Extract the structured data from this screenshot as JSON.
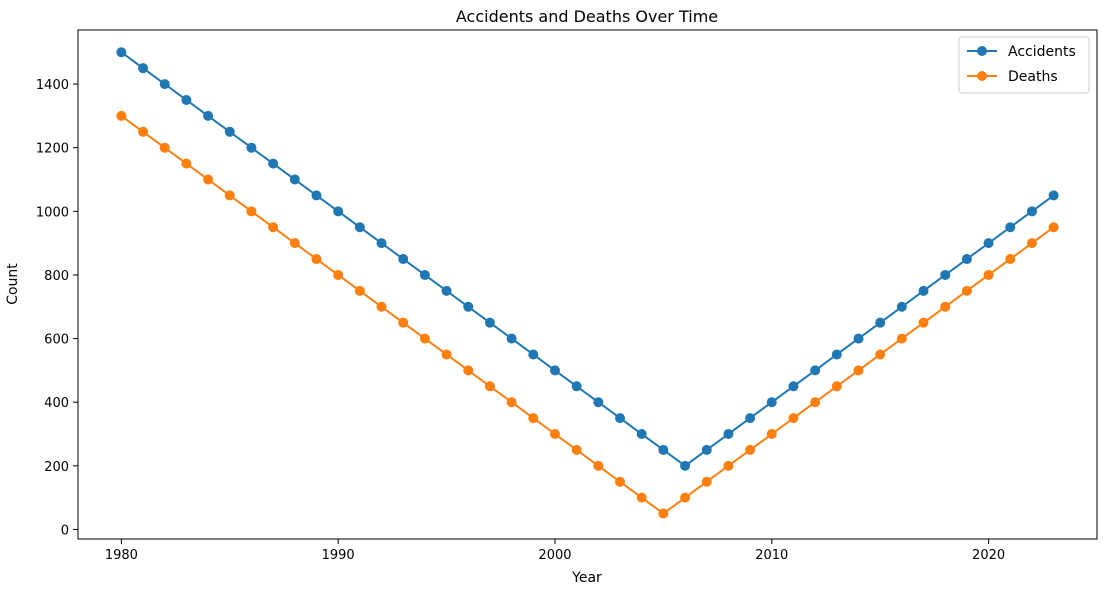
{
  "chart_data": {
    "type": "line",
    "title": "Accidents and Deaths Over Time",
    "xlabel": "Year",
    "ylabel": "Count",
    "xlim": [
      1978,
      2025
    ],
    "ylim": [
      -30,
      1570
    ],
    "xticks": [
      1980,
      1990,
      2000,
      2010,
      2020
    ],
    "yticks": [
      0,
      200,
      400,
      600,
      800,
      1000,
      1200,
      1400
    ],
    "grid": false,
    "legend_position": "top-right",
    "x": [
      1980,
      1981,
      1982,
      1983,
      1984,
      1985,
      1986,
      1987,
      1988,
      1989,
      1990,
      1991,
      1992,
      1993,
      1994,
      1995,
      1996,
      1997,
      1998,
      1999,
      2000,
      2001,
      2002,
      2003,
      2004,
      2005,
      2006,
      2007,
      2008,
      2009,
      2010,
      2011,
      2012,
      2013,
      2014,
      2015,
      2016,
      2017,
      2018,
      2019,
      2020,
      2021,
      2022,
      2023
    ],
    "series": [
      {
        "name": "Accidents",
        "color": "#1f77b4",
        "values": [
          1500,
          1450,
          1400,
          1350,
          1300,
          1250,
          1200,
          1150,
          1100,
          1050,
          1000,
          950,
          900,
          850,
          800,
          750,
          700,
          650,
          600,
          550,
          500,
          450,
          400,
          350,
          300,
          250,
          200,
          250,
          300,
          350,
          400,
          450,
          500,
          550,
          600,
          650,
          700,
          750,
          800,
          850,
          900,
          950,
          1000,
          1050
        ]
      },
      {
        "name": "Deaths",
        "color": "#ff7f0e",
        "values": [
          1300,
          1250,
          1200,
          1150,
          1100,
          1050,
          1000,
          950,
          900,
          850,
          800,
          750,
          700,
          650,
          600,
          550,
          500,
          450,
          400,
          350,
          300,
          250,
          200,
          150,
          100,
          50,
          100,
          150,
          200,
          250,
          300,
          350,
          400,
          450,
          500,
          550,
          600,
          650,
          700,
          750,
          800,
          850,
          900,
          950
        ]
      }
    ]
  }
}
